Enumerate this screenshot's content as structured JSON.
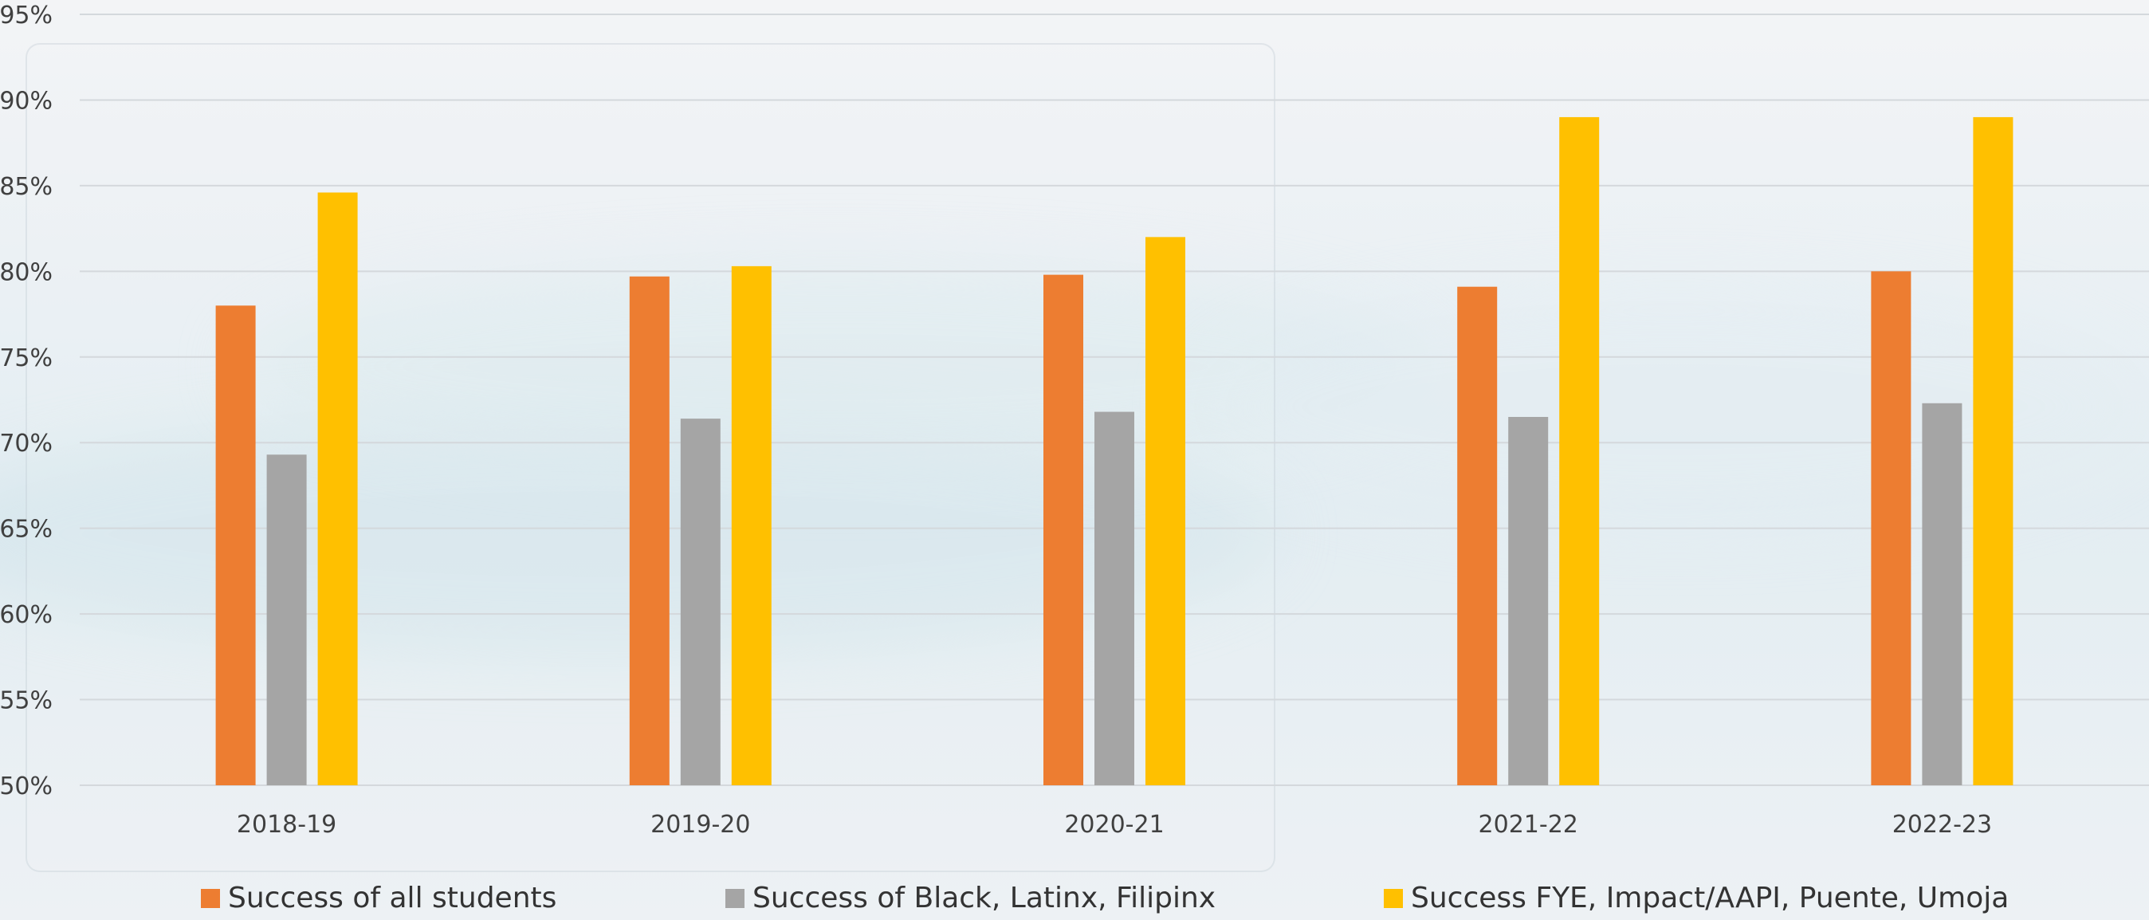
{
  "chart_data": {
    "type": "bar",
    "categories": [
      "2018-19",
      "2019-20",
      "2020-21",
      "2021-22",
      "2022-23"
    ],
    "series": [
      {
        "name": "Success of all students",
        "color": "#ED7D31",
        "values": [
          78.0,
          79.7,
          79.8,
          79.1,
          80.0
        ]
      },
      {
        "name": "Success of Black, Latinx, Filipinx",
        "color": "#A5A5A5",
        "values": [
          69.3,
          71.4,
          71.8,
          71.5,
          72.3
        ]
      },
      {
        "name": "Success FYE, Impact/AAPI, Puente, Umoja",
        "color": "#FFC000",
        "values": [
          84.6,
          80.3,
          82.0,
          89.0,
          89.0
        ]
      }
    ],
    "ylim": [
      50,
      95
    ],
    "yticks": [
      "50%",
      "55%",
      "60%",
      "65%",
      "70%",
      "75%",
      "80%",
      "85%",
      "90%",
      "95%"
    ],
    "grid": true,
    "legend": "bottom"
  }
}
